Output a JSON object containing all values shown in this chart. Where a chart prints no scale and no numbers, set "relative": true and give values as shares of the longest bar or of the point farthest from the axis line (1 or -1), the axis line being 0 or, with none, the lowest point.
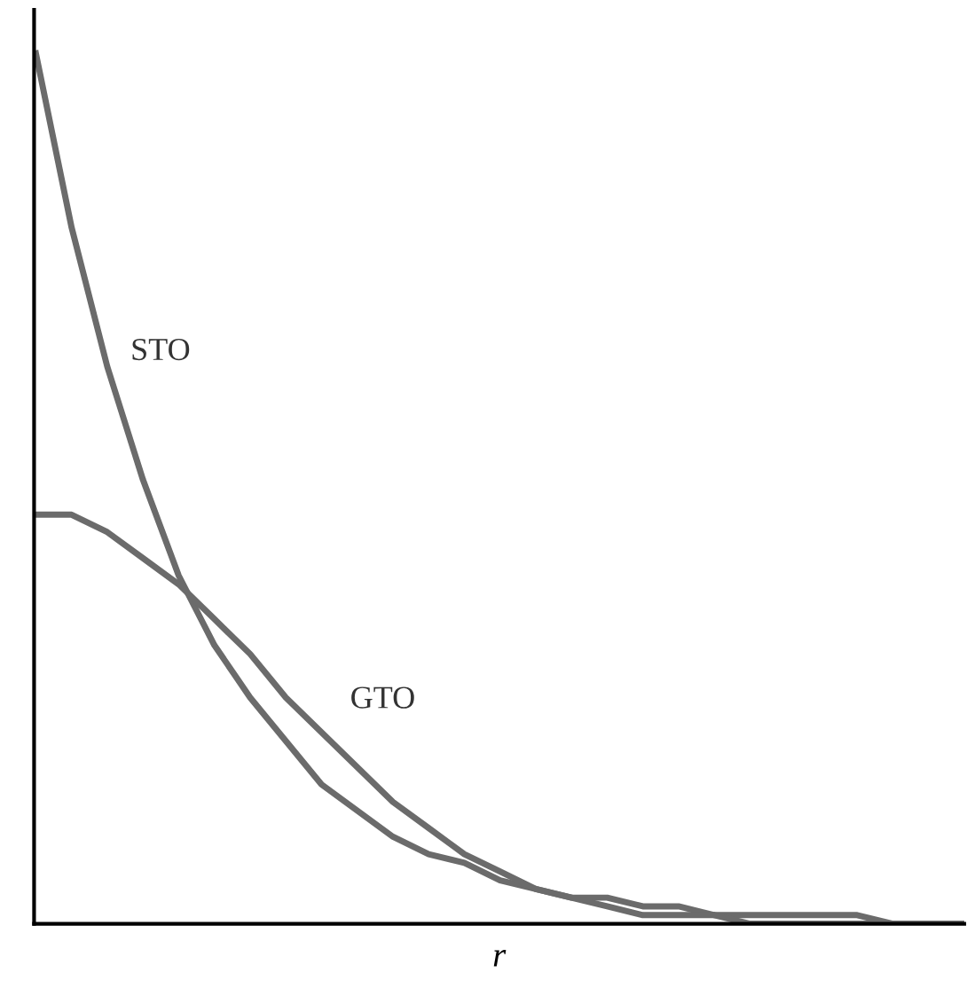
{
  "chart_data": {
    "type": "line",
    "relative": true,
    "xlabel": "r",
    "categories": [
      null,
      null,
      null,
      null,
      null,
      null,
      null,
      null,
      null,
      null,
      null,
      null,
      null,
      null,
      null,
      null,
      null,
      null,
      null,
      null,
      null,
      null,
      null,
      null,
      null,
      null,
      null
    ],
    "series": [
      {
        "name": "STO",
        "color": "#6b6b6b",
        "values": [
          1.0,
          0.8,
          0.64,
          0.51,
          0.4,
          0.32,
          0.26,
          0.21,
          0.16,
          0.13,
          0.1,
          0.08,
          0.07,
          0.05,
          0.04,
          0.03,
          0.03,
          0.02,
          0.02,
          0.01,
          0.01,
          0.01,
          0.01,
          0.01,
          0,
          0,
          0
        ]
      },
      {
        "name": "GTO",
        "color": "#6b6b6b",
        "values": [
          0.47,
          0.47,
          0.45,
          0.42,
          0.39,
          0.35,
          0.31,
          0.26,
          0.22,
          0.18,
          0.14,
          0.11,
          0.08,
          0.06,
          0.04,
          0.03,
          0.02,
          0.01,
          0.01,
          0.01,
          0,
          0,
          0,
          0,
          0,
          0,
          0
        ]
      }
    ],
    "grid": false,
    "legend": false,
    "marker": "none",
    "line_style": "solid"
  }
}
